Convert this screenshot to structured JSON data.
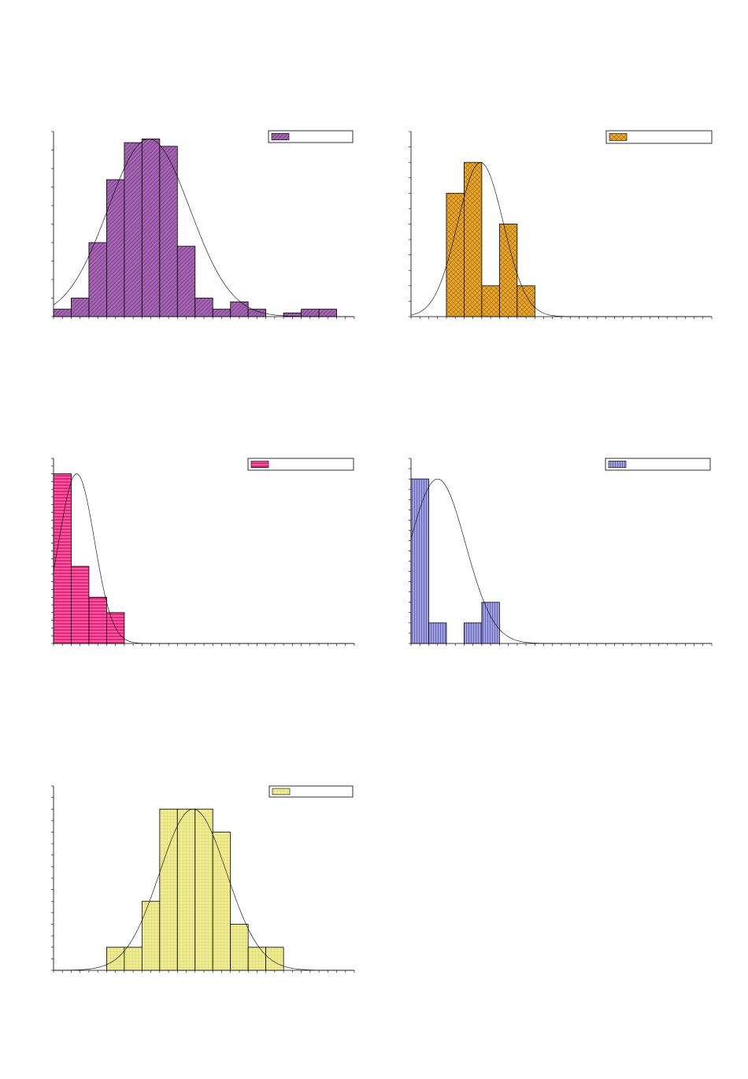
{
  "chart_data": [
    {
      "type": "bar",
      "x": [
        0,
        1,
        2,
        3,
        4,
        5,
        6,
        7,
        8,
        9,
        10,
        11,
        12,
        13,
        14,
        15,
        16
      ],
      "values": [
        2,
        5,
        20,
        37,
        47,
        48,
        46,
        19,
        5,
        2,
        4,
        2,
        0,
        1,
        2,
        2,
        0
      ],
      "xlim": [
        0,
        17
      ],
      "ylim": [
        0,
        50
      ],
      "y_tick_step": 5,
      "x_tick_step": 0.5,
      "fit_curve": "normal",
      "legend_position": "top-right",
      "bar_color": "#a463b2",
      "pattern": "diagonal",
      "grid": false
    },
    {
      "type": "bar",
      "x": [
        0,
        1,
        2,
        3,
        4,
        5,
        6,
        7,
        8,
        9,
        10,
        11,
        12,
        13,
        14,
        15,
        16
      ],
      "values": [
        0,
        0,
        4,
        5,
        1,
        3,
        1,
        0,
        0,
        0,
        0,
        0,
        0,
        0,
        0,
        0,
        0
      ],
      "xlim": [
        0,
        17
      ],
      "ylim": [
        0,
        6
      ],
      "y_tick_step": 0.5,
      "x_tick_step": 0.5,
      "fit_curve": "normal",
      "legend_position": "top-right",
      "bar_color": "#e9a429",
      "pattern": "crosshatch",
      "grid": false
    },
    {
      "type": "bar",
      "x": [
        0,
        1,
        2,
        3,
        4,
        5,
        6,
        7,
        8,
        9,
        10,
        11,
        12,
        13,
        14,
        15,
        16
      ],
      "values": [
        11,
        5,
        3,
        2,
        0,
        0,
        0,
        0,
        0,
        0,
        0,
        0,
        0,
        0,
        0,
        0,
        0
      ],
      "xlim": [
        0,
        17
      ],
      "ylim": [
        0,
        12
      ],
      "y_tick_step": 0.5,
      "x_tick_step": 0.5,
      "fit_curve": "normal",
      "legend_position": "top-right",
      "bar_color": "#e8237d",
      "pattern": "horizontal",
      "grid": false
    },
    {
      "type": "bar",
      "x": [
        0,
        1,
        2,
        3,
        4,
        5,
        6,
        7,
        8,
        9,
        10,
        11,
        12,
        13,
        14,
        15,
        16
      ],
      "values": [
        8,
        1,
        0,
        1,
        2,
        0,
        0,
        0,
        0,
        0,
        0,
        0,
        0,
        0,
        0,
        0,
        0
      ],
      "xlim": [
        0,
        17
      ],
      "ylim": [
        0,
        9
      ],
      "y_tick_step": 0.5,
      "x_tick_step": 0.5,
      "fit_curve": "normal",
      "legend_position": "top-right",
      "bar_color": "#a0a0e0",
      "pattern": "vertical",
      "grid": false
    },
    {
      "type": "bar",
      "x": [
        0,
        1,
        2,
        3,
        4,
        5,
        6,
        7,
        8,
        9,
        10,
        11,
        12,
        13,
        14,
        15,
        16
      ],
      "values": [
        0,
        0,
        0,
        1,
        1,
        3,
        7,
        7,
        7,
        6,
        2,
        1,
        1,
        0,
        0,
        0,
        0
      ],
      "xlim": [
        0,
        17
      ],
      "ylim": [
        0,
        8
      ],
      "y_tick_step": 0.5,
      "x_tick_step": 0.5,
      "fit_curve": "normal",
      "legend_position": "top-right",
      "bar_color": "#f0ee90",
      "pattern": "grid",
      "grid": false
    }
  ]
}
